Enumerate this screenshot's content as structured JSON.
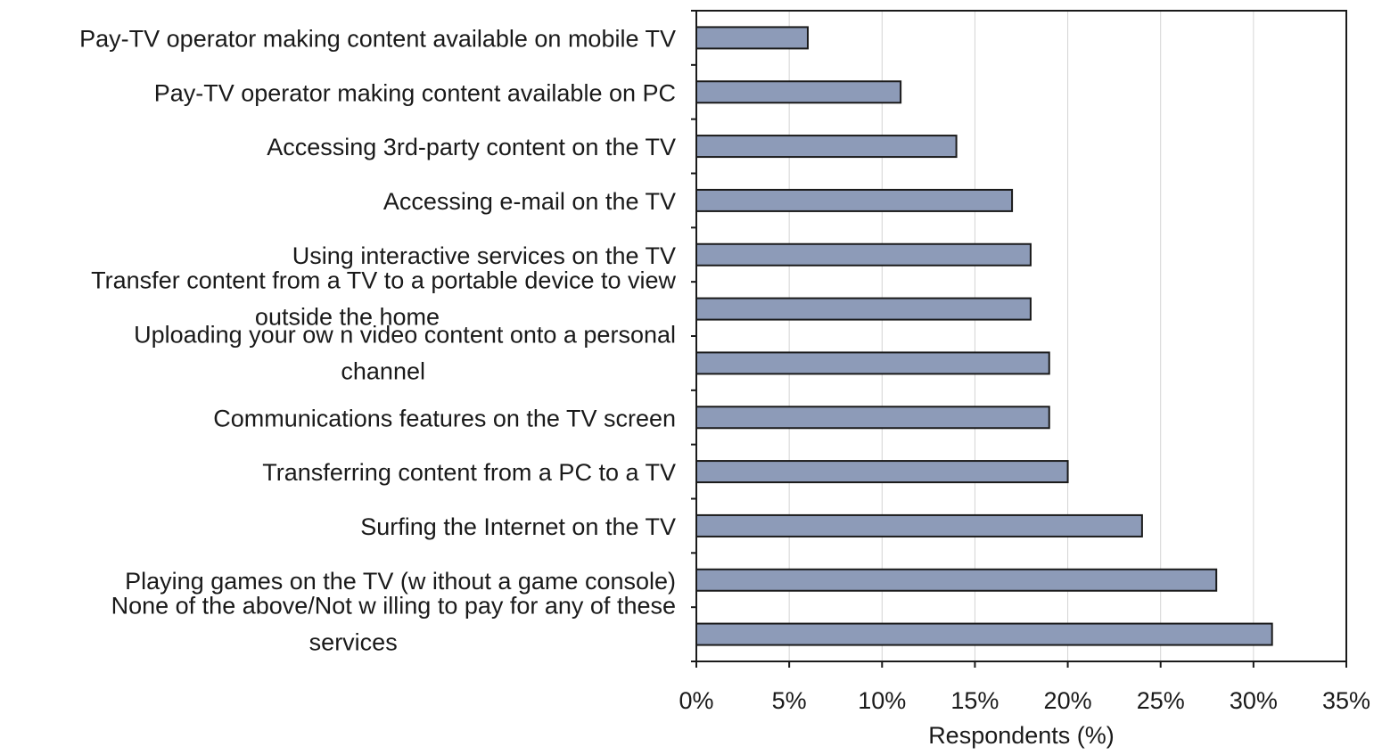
{
  "chart_data": {
    "type": "bar",
    "orientation": "horizontal",
    "categories": [
      [
        "Pay-TV operator making content available on mobile TV"
      ],
      [
        "Pay-TV operator making content available on PC"
      ],
      [
        "Accessing 3rd-party content on the TV"
      ],
      [
        "Accessing e-mail on the TV"
      ],
      [
        "Using interactive services on the TV"
      ],
      [
        "Transfer content from a TV to a portable device to view",
        "outside the home"
      ],
      [
        "Uploading your ow n video content onto a personal",
        "channel"
      ],
      [
        "Communications features on the TV screen"
      ],
      [
        "Transferring content from a PC to a TV"
      ],
      [
        "Surfing the Internet on the TV"
      ],
      [
        "Playing games on the TV (w ithout a game console)"
      ],
      [
        "None of the above/Not w illing to pay for any of these",
        "services"
      ]
    ],
    "values": [
      6,
      11,
      14,
      17,
      18,
      18,
      19,
      19,
      20,
      24,
      28,
      31
    ],
    "xlabel": "Respondents (%)",
    "ylabel": "",
    "title": "",
    "xlim": [
      0,
      35
    ],
    "xticks": [
      0,
      5,
      10,
      15,
      20,
      25,
      30,
      35
    ],
    "xtick_format": "percent",
    "grid": true,
    "legend": "none",
    "colors": {
      "bar_fill": "#8d9bb8",
      "bar_stroke": "#1a1a1a",
      "grid": "#d4d4d4"
    }
  }
}
